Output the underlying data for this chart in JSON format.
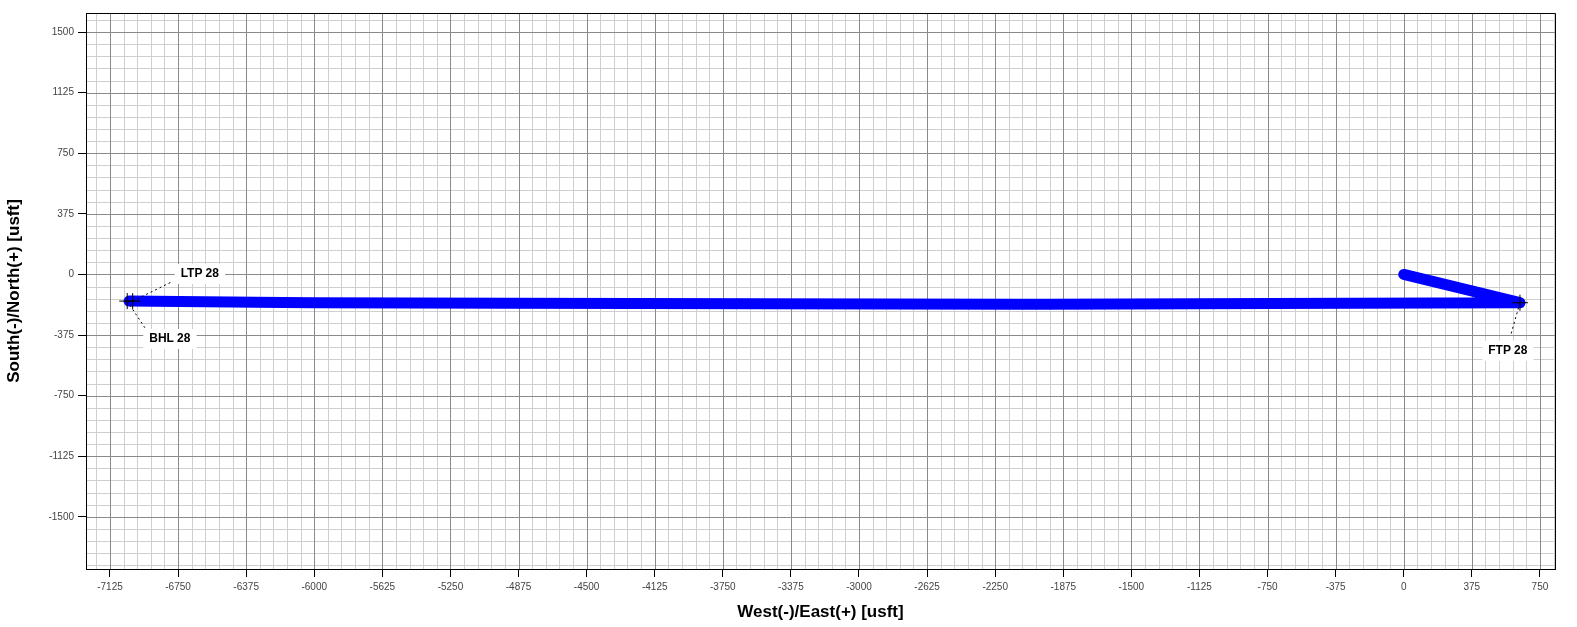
{
  "chart_data": {
    "type": "line",
    "xlabel": "West(-)/East(+) [usft]",
    "ylabel": "South(-)/North(+) [usft]",
    "x": [
      0,
      640,
      -1980,
      -6000,
      -7020
    ],
    "series": [
      {
        "color": "#0000ff",
        "values": [
          0,
          -175,
          -185,
          -175,
          -165
        ]
      }
    ],
    "xlim": [
      -7257,
      833
    ],
    "ylim": [
      -1823,
      1618
    ],
    "xticks": [
      -7125,
      -6750,
      -6375,
      -6000,
      -5625,
      -5250,
      -4875,
      -4500,
      -4125,
      -3750,
      -3375,
      -3000,
      -2625,
      -2250,
      -1875,
      -1500,
      -1125,
      -750,
      -375,
      0,
      375,
      750
    ],
    "yticks": [
      -1500,
      -1125,
      -750,
      -375,
      0,
      375,
      750,
      1125,
      1500
    ],
    "grid": true,
    "legend": false,
    "marker": "none",
    "line_style": "solid",
    "annotations": [
      {
        "text": "LTP 28",
        "x": -7000,
        "y": -165
      },
      {
        "text": "BHL 28",
        "x": -7030,
        "y": -165
      },
      {
        "text": "FTP 28",
        "x": 640,
        "y": -175
      }
    ]
  }
}
